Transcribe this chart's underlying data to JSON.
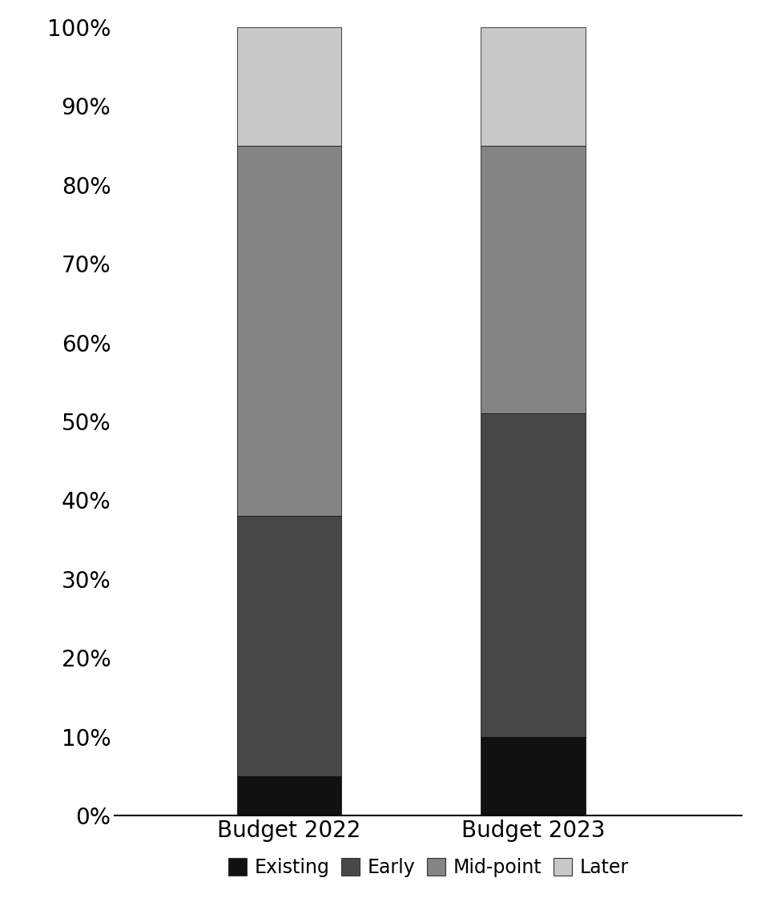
{
  "categories": [
    "Budget 2022",
    "Budget 2023"
  ],
  "series": {
    "Existing": [
      5,
      10
    ],
    "Early": [
      33,
      41
    ],
    "Mid-point": [
      47,
      34
    ],
    "Later": [
      15,
      15
    ]
  },
  "colors": {
    "Existing": "#111111",
    "Early": "#484848",
    "Mid-point": "#848484",
    "Later": "#c8c8c8"
  },
  "ylim": [
    0,
    100
  ],
  "yticks": [
    0,
    10,
    20,
    30,
    40,
    50,
    60,
    70,
    80,
    90,
    100
  ],
  "ytick_labels": [
    "0%",
    "10%",
    "20%",
    "30%",
    "40%",
    "50%",
    "60%",
    "70%",
    "80%",
    "90%",
    "100%"
  ],
  "bar_positions": [
    0.35,
    0.7
  ],
  "bar_width": 0.15,
  "legend_order": [
    "Existing",
    "Early",
    "Mid-point",
    "Later"
  ],
  "background_color": "#ffffff",
  "tick_fontsize": 20,
  "label_fontsize": 20,
  "legend_fontsize": 17
}
